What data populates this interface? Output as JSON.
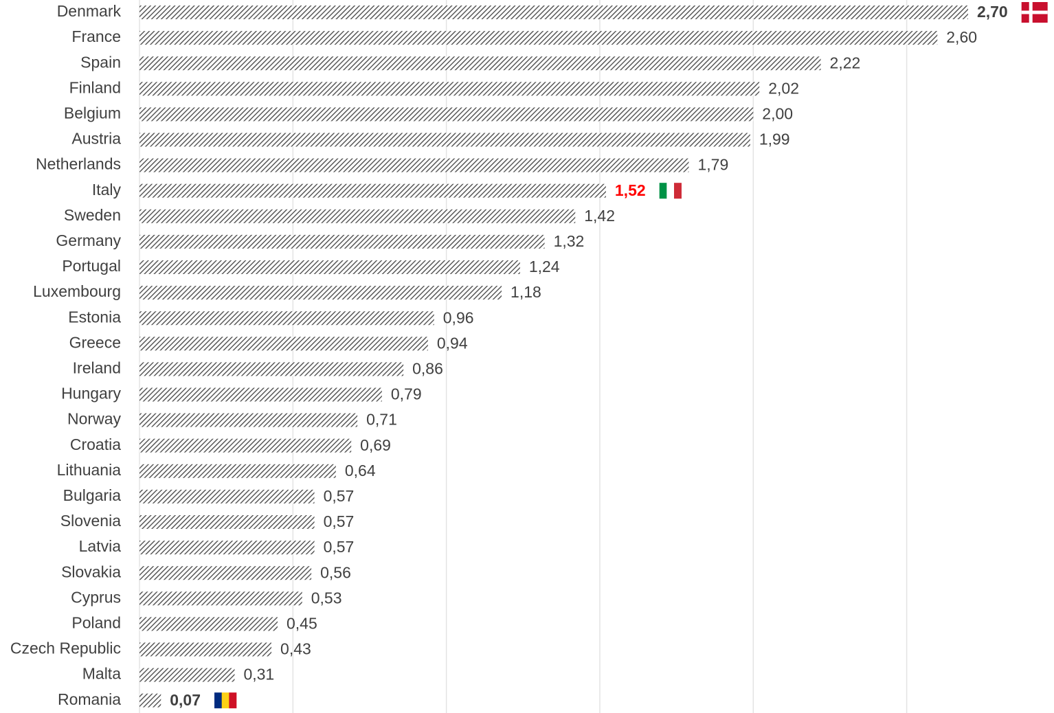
{
  "chart_data": {
    "type": "bar",
    "orientation": "horizontal",
    "categories": [
      "Denmark",
      "France",
      "Spain",
      "Finland",
      "Belgium",
      "Austria",
      "Netherlands",
      "Italy",
      "Sweden",
      "Germany",
      "Portugal",
      "Luxembourg",
      "Estonia",
      "Greece",
      "Ireland",
      "Hungary",
      "Norway",
      "Croatia",
      "Lithuania",
      "Bulgaria",
      "Slovenia",
      "Latvia",
      "Slovakia",
      "Cyprus",
      "Poland",
      "Czech Republic",
      "Malta",
      "Romania"
    ],
    "values": [
      2.7,
      2.6,
      2.22,
      2.02,
      2.0,
      1.99,
      1.79,
      1.52,
      1.42,
      1.32,
      1.24,
      1.18,
      0.96,
      0.94,
      0.86,
      0.79,
      0.71,
      0.69,
      0.64,
      0.57,
      0.57,
      0.57,
      0.56,
      0.53,
      0.45,
      0.43,
      0.31,
      0.07
    ],
    "value_labels": [
      "2,70",
      "2,60",
      "2,22",
      "2,02",
      "2,00",
      "1,99",
      "1,79",
      "1,52",
      "1,42",
      "1,32",
      "1,24",
      "1,18",
      "0,96",
      "0,94",
      "0,86",
      "0,79",
      "0,71",
      "0,69",
      "0,64",
      "0,57",
      "0,57",
      "0,57",
      "0,56",
      "0,53",
      "0,45",
      "0,43",
      "0,31",
      "0,07"
    ],
    "color": "#595959",
    "hatch": true,
    "label_colors": [
      "#404040",
      "#404040",
      "#404040",
      "#404040",
      "#404040",
      "#404040",
      "#404040",
      "#ff0000",
      "#404040",
      "#404040",
      "#404040",
      "#404040",
      "#404040",
      "#404040",
      "#404040",
      "#404040",
      "#404040",
      "#404040",
      "#404040",
      "#404040",
      "#404040",
      "#404040",
      "#404040",
      "#404040",
      "#404040",
      "#404040",
      "#404040",
      "#404040"
    ],
    "label_bold": [
      true,
      false,
      false,
      false,
      false,
      false,
      false,
      true,
      false,
      false,
      false,
      false,
      false,
      false,
      false,
      false,
      false,
      false,
      false,
      false,
      false,
      false,
      false,
      false,
      false,
      false,
      false,
      true
    ],
    "flags": [
      {
        "style": "cross",
        "colors": [
          "#c8102e",
          "#ffffff"
        ]
      },
      null,
      null,
      null,
      null,
      null,
      null,
      {
        "style": "tricolor",
        "colors": [
          "#009246",
          "#ffffff",
          "#ce2b37"
        ]
      },
      null,
      null,
      null,
      null,
      null,
      null,
      null,
      null,
      null,
      null,
      null,
      null,
      null,
      null,
      null,
      null,
      null,
      null,
      null,
      {
        "style": "tricolor",
        "colors": [
          "#002b7f",
          "#fcd116",
          "#ce1126"
        ]
      }
    ],
    "xlim": [
      0,
      2.98
    ],
    "xticks": [
      0,
      0.5,
      1,
      1.5,
      2,
      2.5
    ],
    "grid": true
  }
}
